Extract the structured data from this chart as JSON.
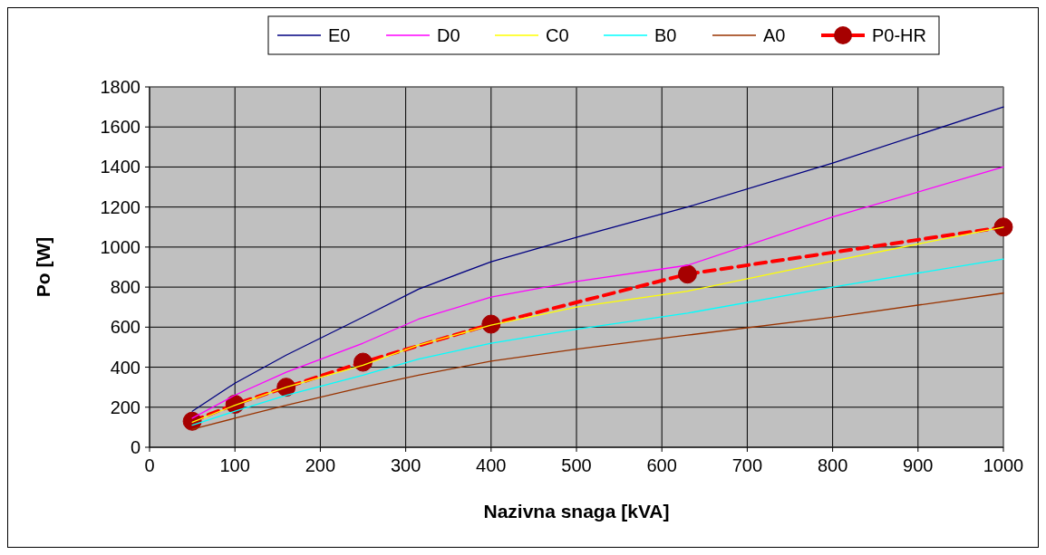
{
  "chart_data": {
    "type": "line",
    "xlabel": "Nazivna snaga [kVA]",
    "ylabel": "Po [W]",
    "xlim": [
      0,
      1000
    ],
    "xticks": [
      0,
      100,
      200,
      300,
      400,
      500,
      600,
      700,
      800,
      900,
      1000
    ],
    "ylim": [
      0,
      1800
    ],
    "yticks": [
      0,
      200,
      400,
      600,
      800,
      1000,
      1200,
      1400,
      1600,
      1800
    ],
    "grid": true,
    "legend": "top",
    "series": [
      {
        "name": "E0",
        "color": "#000080",
        "x": [
          50,
          100,
          160,
          250,
          315,
          400,
          500,
          630,
          800,
          1000
        ],
        "values": [
          180,
          320,
          460,
          650,
          790,
          927,
          1049,
          1200,
          1420,
          1700
        ]
      },
      {
        "name": "D0",
        "color": "#ff00ff",
        "x": [
          50,
          100,
          160,
          250,
          315,
          400,
          500,
          630,
          800,
          1000
        ],
        "values": [
          145,
          260,
          375,
          520,
          640,
          750,
          828,
          909,
          1150,
          1400
        ]
      },
      {
        "name": "C0",
        "color": "#ffff00",
        "x": [
          50,
          100,
          160,
          250,
          315,
          400,
          500,
          630,
          800,
          1000
        ],
        "values": [
          125,
          210,
          300,
          410,
          510,
          610,
          700,
          780,
          930,
          1100
        ]
      },
      {
        "name": "B0",
        "color": "#00ffff",
        "x": [
          50,
          100,
          160,
          250,
          315,
          400,
          500,
          630,
          800,
          1000
        ],
        "values": [
          110,
          180,
          260,
          360,
          440,
          520,
          590,
          670,
          800,
          940
        ]
      },
      {
        "name": "A0",
        "color": "#993300",
        "x": [
          50,
          100,
          160,
          250,
          315,
          400,
          500,
          630,
          800,
          1000
        ],
        "values": [
          90,
          145,
          210,
          300,
          360,
          430,
          490,
          560,
          650,
          770
        ]
      },
      {
        "name": "P0-HR",
        "color": "#ff0000",
        "marker": "circle",
        "line_style": "dashed",
        "x": [
          50,
          100,
          160,
          250,
          400,
          630,
          1000
        ],
        "values": [
          130,
          215,
          300,
          425,
          615,
          865,
          1100
        ]
      }
    ]
  }
}
